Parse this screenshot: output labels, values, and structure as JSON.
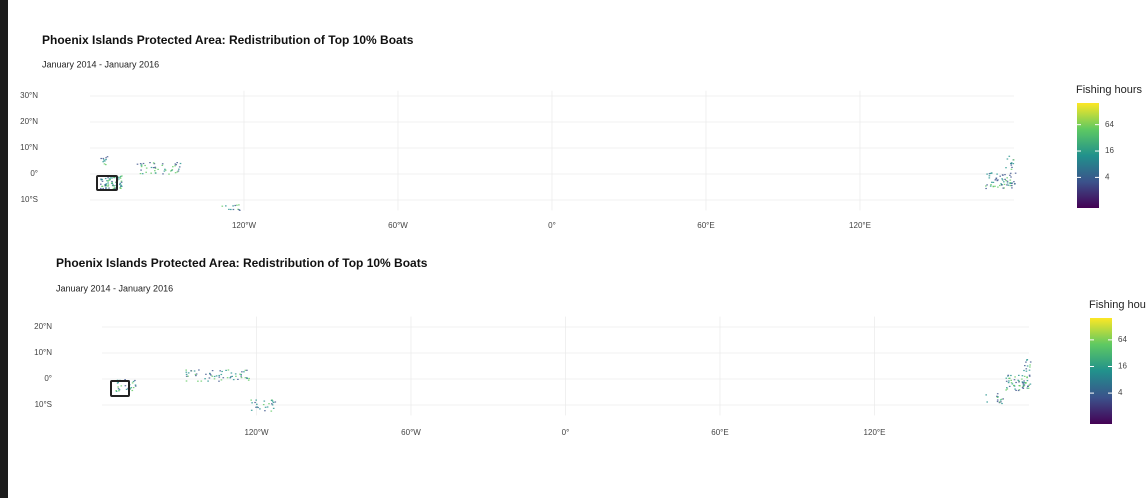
{
  "chart_data": [
    {
      "type": "map",
      "title": "Phoenix Islands Protected Area: Redistribution of Top 10% Boats",
      "subtitle": "January 2014 - January 2016",
      "xlim": [
        -180,
        180
      ],
      "ylim": [
        -14,
        32
      ],
      "xticks": [
        {
          "value": -120,
          "label": "120°W"
        },
        {
          "value": -60,
          "label": "60°W"
        },
        {
          "value": 0,
          "label": "0°"
        },
        {
          "value": 60,
          "label": "60°E"
        },
        {
          "value": 120,
          "label": "120°E"
        }
      ],
      "yticks": [
        {
          "value": 30,
          "label": "30°N"
        },
        {
          "value": 20,
          "label": "20°N"
        },
        {
          "value": 10,
          "label": "10°N"
        },
        {
          "value": 0,
          "label": "0°"
        },
        {
          "value": -10,
          "label": "10°S"
        }
      ],
      "grid": true,
      "legend": {
        "title": "Fishing hours",
        "log_scale": true,
        "lim": [
          0.8,
          200
        ],
        "ticks": [
          4,
          16,
          64
        ],
        "colors": [
          "#440154",
          "#3b528b",
          "#21918c",
          "#5ec962",
          "#fde725"
        ]
      }
    },
    {
      "type": "map",
      "title": "Phoenix Islands Protected Area: Redistribution of Top 10% Boats",
      "subtitle": "January 2014 - January 2016",
      "xlim": [
        -180,
        180
      ],
      "ylim": [
        -14,
        24
      ],
      "xticks": [
        {
          "value": -120,
          "label": "120°W"
        },
        {
          "value": -60,
          "label": "60°W"
        },
        {
          "value": 0,
          "label": "0°"
        },
        {
          "value": 60,
          "label": "60°E"
        },
        {
          "value": 120,
          "label": "120°E"
        }
      ],
      "yticks": [
        {
          "value": 20,
          "label": "20°N"
        },
        {
          "value": 10,
          "label": "10°N"
        },
        {
          "value": 0,
          "label": "0°"
        },
        {
          "value": -10,
          "label": "10°S"
        }
      ],
      "grid": true,
      "legend": {
        "title": "Fishing hours",
        "log_scale": true,
        "lim": [
          0.8,
          200
        ],
        "ticks": [
          4,
          16,
          64
        ],
        "colors": [
          "#440154",
          "#3b528b",
          "#21918c",
          "#5ec962",
          "#fde725"
        ]
      }
    }
  ]
}
